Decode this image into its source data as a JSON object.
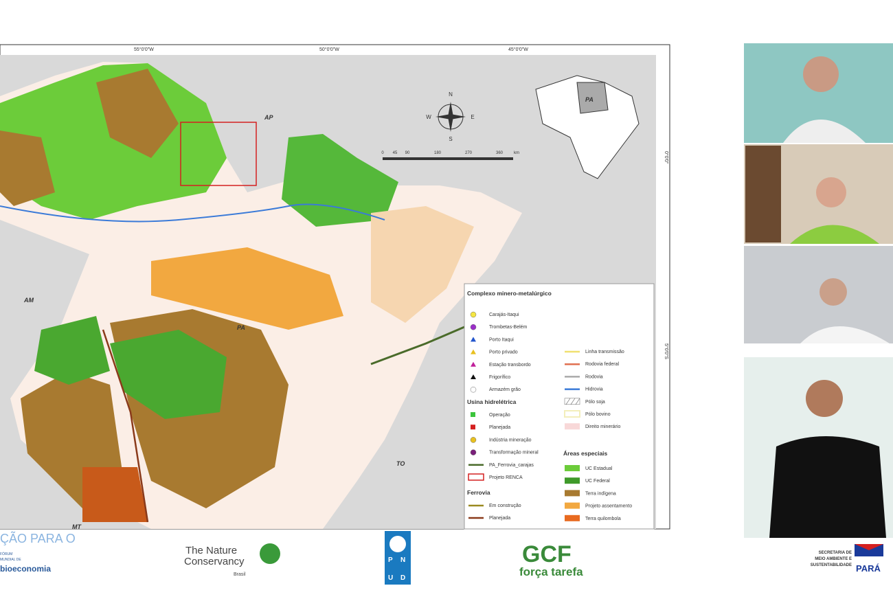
{
  "map": {
    "graticule": [
      "55°0'0\"W",
      "50°0'0\"W",
      "45°0'0\"W"
    ],
    "side_graticule": [
      "0°0'0\"",
      "5°0'0\"S"
    ],
    "regions": [
      "AP",
      "AM",
      "PA",
      "TO",
      "MT"
    ],
    "inset_label": "PA",
    "compass": [
      "N",
      "S",
      "E",
      "W"
    ],
    "scale": [
      "0",
      "45",
      "90",
      "180",
      "270",
      "360",
      "km"
    ]
  },
  "legend": {
    "title": "Complexo minero-metalúrgico",
    "left": [
      {
        "label": "Carajás-Itaqui",
        "color": "#f5e642",
        "shape": "circle"
      },
      {
        "label": "Trombetas-Belém",
        "color": "#9b2fc9",
        "shape": "circle"
      },
      {
        "label": "Porto Itaqui",
        "color": "#2255cc",
        "shape": "triangle"
      },
      {
        "label": "Porto privado",
        "color": "#e8c020",
        "shape": "triangle"
      },
      {
        "label": "Estação transbordo",
        "color": "#c0209a",
        "shape": "triangle"
      },
      {
        "label": "Frigorífico",
        "color": "#111111",
        "shape": "triangle"
      },
      {
        "label": "Armazém grão",
        "color": "#ffffff",
        "shape": "circle"
      }
    ],
    "section_hydro": "Usina hidrelétrica",
    "hydro": [
      {
        "label": "Operação",
        "color": "#3cc43c",
        "shape": "square"
      },
      {
        "label": "Planejada",
        "color": "#d42020",
        "shape": "square"
      },
      {
        "label": "Indústria mineração",
        "color": "#e8c020",
        "shape": "circle"
      },
      {
        "label": "Transformação mineral",
        "color": "#7a1f7a",
        "shape": "circle"
      },
      {
        "label": "PA_Ferrovia_carajas",
        "color": "#4a6b2a",
        "shape": "line"
      },
      {
        "label": "Projeto RENCA",
        "color": "#d42020",
        "shape": "box"
      }
    ],
    "section_rail": "Ferrovia",
    "rail": [
      {
        "label": "Em construção",
        "color": "#9a8a20",
        "shape": "line"
      },
      {
        "label": "Planejada",
        "color": "#8a3a1a",
        "shape": "line"
      }
    ],
    "right": [
      {
        "label": "Linha transmissão",
        "color": "#f0e070",
        "shape": "line"
      },
      {
        "label": "Rodovia federal",
        "color": "#e07050",
        "shape": "line"
      },
      {
        "label": "Rodovia",
        "color": "#aaaaaa",
        "shape": "line"
      },
      {
        "label": "Hidrovia",
        "color": "#3a7ad8",
        "shape": "line"
      },
      {
        "label": "Pólo soja",
        "color": "#dddddd",
        "shape": "hatch"
      },
      {
        "label": "Pólo bovino",
        "color": "#f3eebb",
        "shape": "box2"
      },
      {
        "label": "Direito minerário",
        "color": "#f8d8d8",
        "shape": "fill"
      }
    ],
    "section_areas": "Áreas especiais",
    "areas": [
      {
        "label": "UC Estadual",
        "color": "#6ccc3a",
        "shape": "fill"
      },
      {
        "label": "UC Federal",
        "color": "#3f9a2a",
        "shape": "fill"
      },
      {
        "label": "Terra indígena",
        "color": "#a87a30",
        "shape": "fill"
      },
      {
        "label": "Projeto assentamento",
        "color": "#f2a840",
        "shape": "fill"
      },
      {
        "label": "Terra quilombola",
        "color": "#e86a20",
        "shape": "fill"
      }
    ]
  },
  "logos": {
    "forum": [
      "ÇÃO PARA O",
      "FÓRUM",
      "MUNDIAL DE",
      "bioeconomia"
    ],
    "tnc": [
      "The Nature",
      "Conservancy",
      "Brasil"
    ],
    "pnud": [
      "P",
      "N",
      "U",
      "D"
    ],
    "gcf": [
      "GCF",
      "força tarefa"
    ],
    "semas": [
      "SECRETARIA DE",
      "MEIO AMBIENTE E",
      "SUSTENTABILIDADE",
      "PARÁ"
    ]
  }
}
